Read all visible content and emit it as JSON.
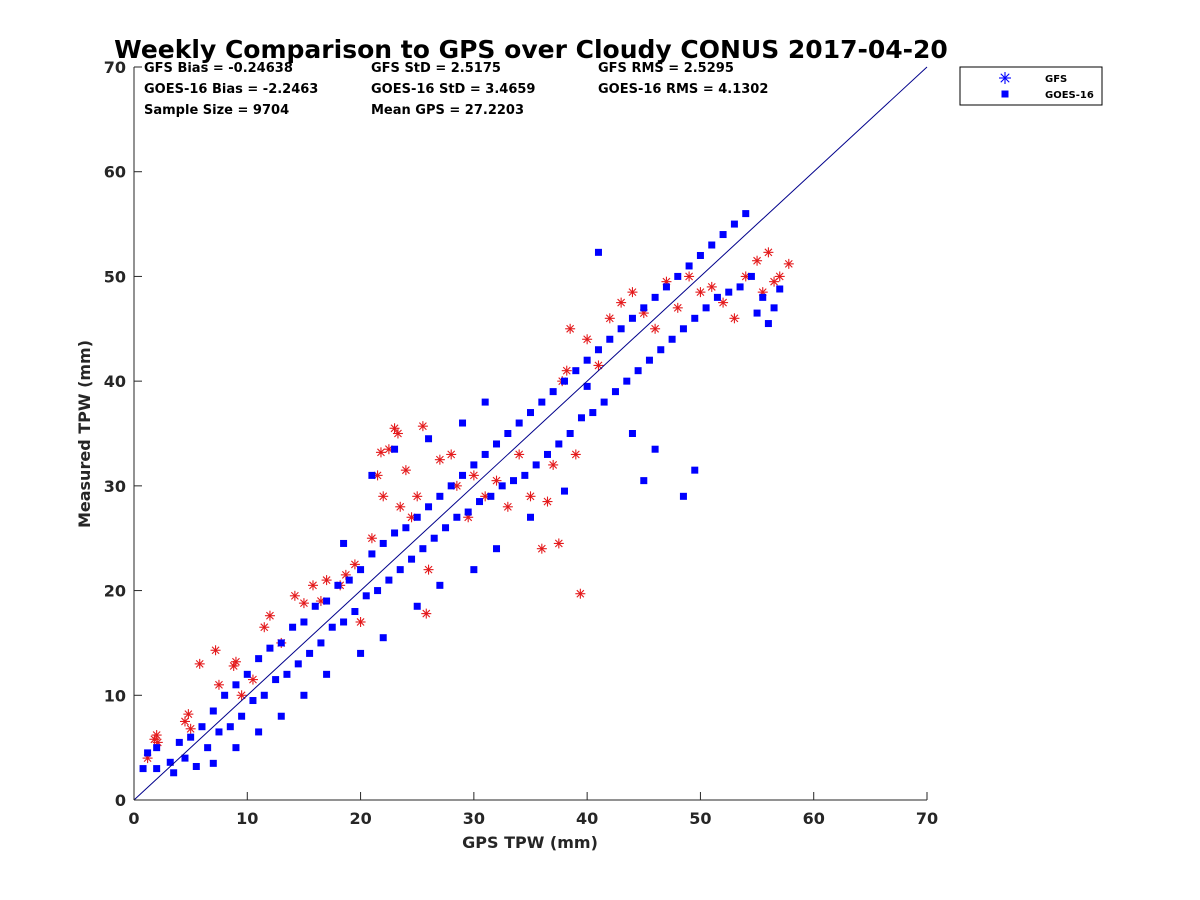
{
  "chart_data": {
    "type": "scatter",
    "title": "Weekly Comparison to GPS over Cloudy CONUS 2017-04-20",
    "xlabel": "GPS TPW (mm)",
    "ylabel": "Measured TPW (mm)",
    "xlim": [
      0,
      70
    ],
    "ylim": [
      0,
      70
    ],
    "xticks": [
      0,
      10,
      20,
      30,
      40,
      50,
      60,
      70
    ],
    "yticks": [
      0,
      10,
      20,
      30,
      40,
      50,
      60,
      70
    ],
    "xtick_labels": [
      "0",
      "10",
      "20",
      "30",
      "40",
      "50",
      "60",
      "70"
    ],
    "ytick_labels": [
      "0",
      "10",
      "20",
      "30",
      "40",
      "50",
      "60",
      "70"
    ],
    "grid": false,
    "legend_position": "outside top-right",
    "reference_line": {
      "from": [
        0,
        0
      ],
      "to": [
        70,
        70
      ],
      "color": "#00008b"
    },
    "stats": [
      [
        "GFS Bias = -0.24638",
        "GFS StD = 2.5175",
        "GFS RMS = 2.5295"
      ],
      [
        "GOES-16 Bias = -2.2463",
        "GOES-16 StD = 3.4659",
        "GOES-16 RMS = 4.1302"
      ],
      [
        "Sample Size = 9704",
        "Mean GPS = 27.2203",
        ""
      ]
    ],
    "series": [
      {
        "name": "GFS",
        "marker": "asterisk",
        "color": "#e41a1c",
        "legend_color": "#0000ff",
        "points": [
          [
            1.2,
            4.0
          ],
          [
            1.8,
            5.8
          ],
          [
            2.0,
            6.2
          ],
          [
            2.1,
            5.5
          ],
          [
            4.5,
            7.5
          ],
          [
            4.8,
            8.2
          ],
          [
            5.0,
            6.8
          ],
          [
            5.8,
            13.0
          ],
          [
            7.2,
            14.3
          ],
          [
            7.5,
            11.0
          ],
          [
            8.8,
            12.8
          ],
          [
            9.0,
            13.2
          ],
          [
            9.5,
            10.0
          ],
          [
            10.5,
            11.5
          ],
          [
            11.5,
            16.5
          ],
          [
            12.0,
            17.6
          ],
          [
            13.0,
            15.0
          ],
          [
            14.2,
            19.5
          ],
          [
            15.0,
            18.8
          ],
          [
            15.8,
            20.5
          ],
          [
            16.5,
            19.0
          ],
          [
            17.0,
            21.0
          ],
          [
            18.2,
            20.5
          ],
          [
            18.7,
            21.5
          ],
          [
            19.5,
            22.5
          ],
          [
            20.0,
            17.0
          ],
          [
            21.0,
            25.0
          ],
          [
            21.5,
            31.0
          ],
          [
            21.8,
            33.2
          ],
          [
            22.0,
            29.0
          ],
          [
            22.5,
            33.5
          ],
          [
            23.0,
            35.5
          ],
          [
            23.3,
            35.0
          ],
          [
            23.5,
            28.0
          ],
          [
            24.0,
            31.5
          ],
          [
            24.5,
            27.0
          ],
          [
            25.0,
            29.0
          ],
          [
            25.5,
            35.7
          ],
          [
            25.8,
            17.8
          ],
          [
            26.0,
            22.0
          ],
          [
            27.0,
            32.5
          ],
          [
            28.0,
            33.0
          ],
          [
            28.5,
            30.0
          ],
          [
            29.5,
            27.0
          ],
          [
            30.0,
            31.0
          ],
          [
            31.0,
            29.0
          ],
          [
            32.0,
            30.5
          ],
          [
            33.0,
            28.0
          ],
          [
            34.0,
            33.0
          ],
          [
            35.0,
            29.0
          ],
          [
            36.0,
            24.0
          ],
          [
            36.5,
            28.5
          ],
          [
            37.0,
            32.0
          ],
          [
            37.5,
            24.5
          ],
          [
            37.8,
            40.0
          ],
          [
            38.2,
            41.0
          ],
          [
            38.5,
            45.0
          ],
          [
            39.0,
            33.0
          ],
          [
            39.4,
            19.7
          ],
          [
            40.0,
            44.0
          ],
          [
            41.0,
            41.5
          ],
          [
            42.0,
            46.0
          ],
          [
            43.0,
            47.5
          ],
          [
            44.0,
            48.5
          ],
          [
            45.0,
            46.5
          ],
          [
            46.0,
            45.0
          ],
          [
            47.0,
            49.5
          ],
          [
            48.0,
            47.0
          ],
          [
            49.0,
            50.0
          ],
          [
            50.0,
            48.5
          ],
          [
            51.0,
            49.0
          ],
          [
            52.0,
            47.5
          ],
          [
            53.0,
            46.0
          ],
          [
            54.0,
            50.0
          ],
          [
            55.0,
            51.5
          ],
          [
            55.5,
            48.5
          ],
          [
            56.0,
            52.3
          ],
          [
            56.5,
            49.5
          ],
          [
            57.0,
            50.0
          ],
          [
            57.8,
            51.2
          ]
        ]
      },
      {
        "name": "GOES-16",
        "marker": "square",
        "color": "#0000ff",
        "legend_color": "#0000ff",
        "points": [
          [
            0.8,
            3.0
          ],
          [
            1.2,
            4.5
          ],
          [
            2.0,
            5.0
          ],
          [
            2.0,
            3.0
          ],
          [
            3.2,
            3.6
          ],
          [
            3.5,
            2.6
          ],
          [
            4.0,
            5.5
          ],
          [
            4.5,
            4.0
          ],
          [
            5.0,
            6.0
          ],
          [
            5.5,
            3.2
          ],
          [
            6.0,
            7.0
          ],
          [
            6.5,
            5.0
          ],
          [
            7.0,
            8.5
          ],
          [
            7.5,
            6.5
          ],
          [
            8.0,
            10.0
          ],
          [
            8.5,
            7.0
          ],
          [
            9.0,
            11.0
          ],
          [
            9.5,
            8.0
          ],
          [
            10.0,
            12.0
          ],
          [
            10.5,
            9.5
          ],
          [
            11.0,
            13.5
          ],
          [
            11.5,
            10.0
          ],
          [
            12.0,
            14.5
          ],
          [
            12.5,
            11.5
          ],
          [
            13.0,
            15.0
          ],
          [
            13.5,
            12.0
          ],
          [
            14.0,
            16.5
          ],
          [
            14.5,
            13.0
          ],
          [
            15.0,
            17.0
          ],
          [
            15.5,
            14.0
          ],
          [
            16.0,
            18.5
          ],
          [
            16.5,
            15.0
          ],
          [
            17.0,
            19.0
          ],
          [
            17.5,
            16.5
          ],
          [
            18.0,
            20.5
          ],
          [
            18.5,
            17.0
          ],
          [
            19.0,
            21.0
          ],
          [
            19.5,
            18.0
          ],
          [
            20.0,
            22.0
          ],
          [
            20.5,
            19.5
          ],
          [
            21.0,
            23.5
          ],
          [
            21.5,
            20.0
          ],
          [
            22.0,
            24.5
          ],
          [
            22.5,
            21.0
          ],
          [
            23.0,
            25.5
          ],
          [
            23.5,
            22.0
          ],
          [
            24.0,
            26.0
          ],
          [
            24.5,
            23.0
          ],
          [
            25.0,
            27.0
          ],
          [
            25.5,
            24.0
          ],
          [
            26.0,
            28.0
          ],
          [
            26.5,
            25.0
          ],
          [
            27.0,
            29.0
          ],
          [
            27.5,
            26.0
          ],
          [
            28.0,
            30.0
          ],
          [
            28.5,
            27.0
          ],
          [
            29.0,
            31.0
          ],
          [
            29.5,
            27.5
          ],
          [
            30.0,
            32.0
          ],
          [
            30.5,
            28.5
          ],
          [
            31.0,
            33.0
          ],
          [
            31.5,
            29.0
          ],
          [
            32.0,
            34.0
          ],
          [
            32.5,
            30.0
          ],
          [
            33.0,
            35.0
          ],
          [
            33.5,
            30.5
          ],
          [
            34.0,
            36.0
          ],
          [
            34.5,
            31.0
          ],
          [
            35.0,
            37.0
          ],
          [
            35.5,
            32.0
          ],
          [
            36.0,
            38.0
          ],
          [
            36.5,
            33.0
          ],
          [
            37.0,
            39.0
          ],
          [
            37.5,
            34.0
          ],
          [
            38.0,
            40.0
          ],
          [
            38.5,
            35.0
          ],
          [
            39.0,
            41.0
          ],
          [
            39.5,
            36.5
          ],
          [
            40.0,
            42.0
          ],
          [
            40.5,
            37.0
          ],
          [
            41.0,
            43.0
          ],
          [
            41.5,
            38.0
          ],
          [
            42.0,
            44.0
          ],
          [
            42.5,
            39.0
          ],
          [
            43.0,
            45.0
          ],
          [
            43.5,
            40.0
          ],
          [
            44.0,
            46.0
          ],
          [
            44.5,
            41.0
          ],
          [
            45.0,
            47.0
          ],
          [
            45.5,
            42.0
          ],
          [
            46.0,
            48.0
          ],
          [
            46.5,
            43.0
          ],
          [
            47.0,
            49.0
          ],
          [
            47.5,
            44.0
          ],
          [
            48.0,
            50.0
          ],
          [
            48.5,
            45.0
          ],
          [
            49.0,
            51.0
          ],
          [
            49.5,
            46.0
          ],
          [
            50.0,
            52.0
          ],
          [
            50.5,
            47.0
          ],
          [
            51.0,
            53.0
          ],
          [
            51.5,
            48.0
          ],
          [
            52.0,
            54.0
          ],
          [
            52.5,
            48.5
          ],
          [
            53.0,
            55.0
          ],
          [
            53.5,
            49.0
          ],
          [
            54.0,
            56.0
          ],
          [
            54.5,
            50.0
          ],
          [
            55.0,
            46.5
          ],
          [
            55.5,
            48.0
          ],
          [
            56.0,
            45.5
          ],
          [
            56.5,
            47.0
          ],
          [
            57.0,
            48.8
          ],
          [
            41.0,
            52.3
          ],
          [
            45.0,
            30.5
          ],
          [
            48.5,
            29.0
          ],
          [
            49.5,
            31.5
          ],
          [
            46.0,
            33.5
          ],
          [
            44.0,
            35.0
          ],
          [
            40.0,
            39.5
          ],
          [
            38.0,
            29.5
          ],
          [
            35.0,
            27.0
          ],
          [
            32.0,
            24.0
          ],
          [
            30.0,
            22.0
          ],
          [
            27.0,
            20.5
          ],
          [
            25.0,
            18.5
          ],
          [
            22.0,
            15.5
          ],
          [
            20.0,
            14.0
          ],
          [
            17.0,
            12.0
          ],
          [
            15.0,
            10.0
          ],
          [
            13.0,
            8.0
          ],
          [
            11.0,
            6.5
          ],
          [
            9.0,
            5.0
          ],
          [
            7.0,
            3.5
          ],
          [
            18.5,
            24.5
          ],
          [
            21.0,
            31.0
          ],
          [
            23.0,
            33.5
          ],
          [
            26.0,
            34.5
          ],
          [
            29.0,
            36.0
          ],
          [
            31.0,
            38.0
          ]
        ]
      }
    ]
  }
}
